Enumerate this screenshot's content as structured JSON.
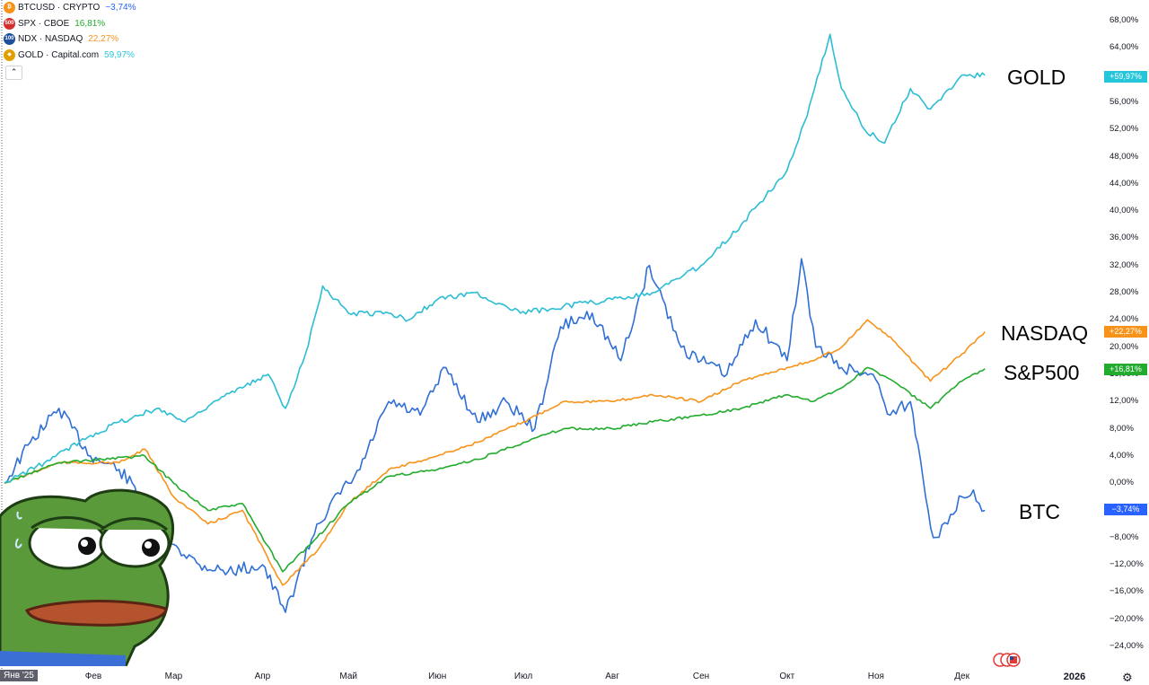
{
  "legend": [
    {
      "icon": "bitcoin-icon",
      "icon_text": "₿",
      "icon_color": "#f7931a",
      "symbol": "BTCUSD · CRYPTO",
      "value": "−3,74%",
      "value_color": "#2962ff"
    },
    {
      "icon": "spx-icon",
      "icon_text": "500",
      "icon_color": "#d32f2f",
      "symbol": "SPX · CBOE",
      "value": "16,81%",
      "value_color": "#22ab2e"
    },
    {
      "icon": "ndx-icon",
      "icon_text": "100",
      "icon_color": "#1e4f9c",
      "symbol": "NDX · NASDAQ",
      "value": "22,27%",
      "value_color": "#f7931a"
    },
    {
      "icon": "gold-icon",
      "icon_text": "◆",
      "icon_color": "#e0a100",
      "symbol": "GOLD · Capital.com",
      "value": "59,97%",
      "value_color": "#26c6da"
    }
  ],
  "collapse_glyph": "⌃",
  "annotations": {
    "gold": "GOLD",
    "nasdaq": "NASDAQ",
    "sp500": "S&P500",
    "btc": "BTC"
  },
  "badges": {
    "gold": "+59,97%",
    "nasdaq": "+22,27%",
    "sp500": "+16,81%",
    "btc": "−3,74%"
  },
  "x_axis": {
    "first": "Янв '25",
    "months": [
      "Фев",
      "Мар",
      "Апр",
      "Май",
      "Июн",
      "Июл",
      "Авг",
      "Сен",
      "Окт",
      "Ноя",
      "Дек"
    ],
    "year": "2026"
  },
  "y_axis": {
    "ticks": [
      "68,00%",
      "64,00%",
      "60,00%",
      "56,00%",
      "52,00%",
      "48,00%",
      "44,00%",
      "40,00%",
      "36,00%",
      "32,00%",
      "28,00%",
      "24,00%",
      "20,00%",
      "16,00%",
      "12,00%",
      "8,00%",
      "4,00%",
      "0,00%",
      "−4,00%",
      "−8,00%",
      "−12,00%",
      "−16,00%",
      "−20,00%",
      "−24,00%"
    ]
  },
  "chart_data": {
    "type": "line",
    "ylim": [
      -26,
      70
    ],
    "y_unit": "%",
    "grid": false,
    "legend_placement": "top-left",
    "series": [
      {
        "name": "BTCUSD",
        "color": "#2f6fd6",
        "points": [
          [
            "2025-01-01",
            0
          ],
          [
            "2025-01-10",
            6
          ],
          [
            "2025-01-20",
            11
          ],
          [
            "2025-01-31",
            4
          ],
          [
            "2025-02-10",
            2
          ],
          [
            "2025-02-20",
            -3
          ],
          [
            "2025-03-01",
            -9
          ],
          [
            "2025-03-10",
            -12
          ],
          [
            "2025-03-20",
            -13
          ],
          [
            "2025-04-01",
            -12
          ],
          [
            "2025-04-09",
            -19
          ],
          [
            "2025-04-20",
            -6
          ],
          [
            "2025-05-01",
            0
          ],
          [
            "2025-05-05",
            2
          ],
          [
            "2025-05-15",
            12
          ],
          [
            "2025-05-26",
            10
          ],
          [
            "2025-06-04",
            17
          ],
          [
            "2025-06-15",
            9
          ],
          [
            "2025-06-25",
            12
          ],
          [
            "2025-07-05",
            8
          ],
          [
            "2025-07-14",
            23
          ],
          [
            "2025-07-25",
            25
          ],
          [
            "2025-08-04",
            18
          ],
          [
            "2025-08-14",
            32
          ],
          [
            "2025-08-25",
            20
          ],
          [
            "2025-09-01",
            18
          ],
          [
            "2025-09-10",
            16
          ],
          [
            "2025-09-20",
            24
          ],
          [
            "2025-10-01",
            18
          ],
          [
            "2025-10-06",
            33
          ],
          [
            "2025-10-11",
            20
          ],
          [
            "2025-10-20",
            17
          ],
          [
            "2025-10-31",
            16
          ],
          [
            "2025-11-06",
            10
          ],
          [
            "2025-11-13",
            12
          ],
          [
            "2025-11-21",
            -8
          ],
          [
            "2025-11-26",
            -6
          ],
          [
            "2025-12-01",
            -2
          ],
          [
            "2025-12-05",
            -1
          ],
          [
            "2025-12-09",
            -4
          ]
        ]
      },
      {
        "name": "NDX",
        "color": "#f7931a",
        "points": [
          [
            "2025-01-01",
            0
          ],
          [
            "2025-01-20",
            3
          ],
          [
            "2025-02-10",
            3
          ],
          [
            "2025-02-19",
            5
          ],
          [
            "2025-03-01",
            -2
          ],
          [
            "2025-03-13",
            -6
          ],
          [
            "2025-03-25",
            -4
          ],
          [
            "2025-04-08",
            -15
          ],
          [
            "2025-04-20",
            -10
          ],
          [
            "2025-05-01",
            -3
          ],
          [
            "2025-05-15",
            2
          ],
          [
            "2025-06-01",
            4
          ],
          [
            "2025-06-15",
            6
          ],
          [
            "2025-07-01",
            9
          ],
          [
            "2025-07-15",
            12
          ],
          [
            "2025-08-01",
            12
          ],
          [
            "2025-08-15",
            13
          ],
          [
            "2025-09-01",
            12
          ],
          [
            "2025-09-15",
            15
          ],
          [
            "2025-10-01",
            17
          ],
          [
            "2025-10-10",
            18
          ],
          [
            "2025-10-20",
            20
          ],
          [
            "2025-10-29",
            24
          ],
          [
            "2025-11-07",
            21
          ],
          [
            "2025-11-20",
            15
          ],
          [
            "2025-12-01",
            19
          ],
          [
            "2025-12-09",
            22.27
          ]
        ]
      },
      {
        "name": "SPX",
        "color": "#22ab2e",
        "points": [
          [
            "2025-01-01",
            0
          ],
          [
            "2025-01-20",
            3
          ],
          [
            "2025-02-19",
            4
          ],
          [
            "2025-03-01",
            0
          ],
          [
            "2025-03-13",
            -4
          ],
          [
            "2025-03-25",
            -3
          ],
          [
            "2025-04-08",
            -13
          ],
          [
            "2025-04-20",
            -8
          ],
          [
            "2025-05-01",
            -3
          ],
          [
            "2025-05-15",
            1
          ],
          [
            "2025-06-01",
            2
          ],
          [
            "2025-06-15",
            3.5
          ],
          [
            "2025-07-01",
            6
          ],
          [
            "2025-07-15",
            8
          ],
          [
            "2025-08-01",
            8
          ],
          [
            "2025-08-15",
            9
          ],
          [
            "2025-09-01",
            10
          ],
          [
            "2025-09-15",
            11
          ],
          [
            "2025-10-01",
            13
          ],
          [
            "2025-10-10",
            12
          ],
          [
            "2025-10-20",
            14
          ],
          [
            "2025-10-29",
            17
          ],
          [
            "2025-11-07",
            15
          ],
          [
            "2025-11-20",
            11
          ],
          [
            "2025-12-01",
            15
          ],
          [
            "2025-12-09",
            16.81
          ]
        ]
      },
      {
        "name": "GOLD",
        "color": "#2bbdd4",
        "points": [
          [
            "2025-01-01",
            0
          ],
          [
            "2025-01-15",
            3
          ],
          [
            "2025-01-31",
            7
          ],
          [
            "2025-02-10",
            9
          ],
          [
            "2025-02-24",
            11
          ],
          [
            "2025-03-05",
            9
          ],
          [
            "2025-03-15",
            12
          ],
          [
            "2025-03-25",
            14
          ],
          [
            "2025-04-03",
            16
          ],
          [
            "2025-04-09",
            11
          ],
          [
            "2025-04-16",
            19
          ],
          [
            "2025-04-22",
            29
          ],
          [
            "2025-05-01",
            25
          ],
          [
            "2025-05-15",
            25
          ],
          [
            "2025-05-22",
            24
          ],
          [
            "2025-06-01",
            27
          ],
          [
            "2025-06-14",
            28
          ],
          [
            "2025-06-30",
            25
          ],
          [
            "2025-07-15",
            26
          ],
          [
            "2025-08-01",
            27
          ],
          [
            "2025-08-15",
            28
          ],
          [
            "2025-09-01",
            32
          ],
          [
            "2025-09-15",
            38
          ],
          [
            "2025-10-01",
            46
          ],
          [
            "2025-10-08",
            54
          ],
          [
            "2025-10-16",
            66
          ],
          [
            "2025-10-20",
            58
          ],
          [
            "2025-10-28",
            52
          ],
          [
            "2025-11-04",
            50
          ],
          [
            "2025-11-13",
            58
          ],
          [
            "2025-11-20",
            55
          ],
          [
            "2025-12-01",
            60
          ],
          [
            "2025-12-09",
            59.97
          ]
        ]
      }
    ]
  }
}
